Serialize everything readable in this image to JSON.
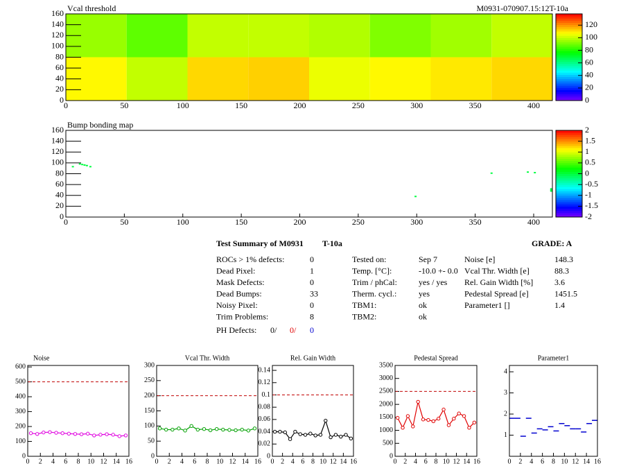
{
  "chart_data": [
    {
      "type": "heatmap",
      "title": "Vcal threshold",
      "annotation": "M0931-070907.15:12T-10a",
      "x_edges": [
        0,
        52,
        104,
        156,
        208,
        260,
        312,
        364,
        416
      ],
      "y_edges": [
        0,
        80,
        160
      ],
      "z": [
        [
          108,
          100,
          112,
          113,
          105,
          108,
          110,
          112
        ],
        [
          95,
          88,
          100,
          100,
          98,
          92,
          96,
          100
        ]
      ],
      "xlim": [
        0,
        416
      ],
      "ylim": [
        0,
        160
      ],
      "xticks": [
        0,
        50,
        100,
        150,
        200,
        250,
        300,
        350,
        400
      ],
      "yticks": [
        0,
        20,
        40,
        60,
        80,
        100,
        120,
        140,
        160
      ],
      "zlim": [
        0,
        138
      ],
      "zticks": [
        0,
        20,
        40,
        60,
        80,
        100,
        120
      ]
    },
    {
      "type": "scatter",
      "title": "Bump bonding map",
      "x": [
        6,
        12,
        14,
        16,
        18,
        21,
        299,
        364,
        395,
        401,
        415,
        415,
        415
      ],
      "y": [
        93,
        98,
        97,
        96,
        95,
        93,
        38,
        81,
        83,
        82,
        52,
        50,
        48
      ],
      "z": [
        0,
        0,
        0,
        0,
        0,
        0,
        0,
        0,
        0,
        0,
        0,
        0,
        0
      ],
      "xlim": [
        0,
        416
      ],
      "ylim": [
        0,
        160
      ],
      "xticks": [
        0,
        50,
        100,
        150,
        200,
        250,
        300,
        350,
        400
      ],
      "yticks": [
        0,
        20,
        40,
        60,
        80,
        100,
        120,
        140,
        160
      ],
      "zlim": [
        -2,
        2
      ],
      "zticks": [
        -2,
        -1.5,
        -1,
        -0.5,
        0,
        0.5,
        1,
        1.5,
        2
      ]
    },
    {
      "type": "line",
      "title": "Noise",
      "x": [
        0.5,
        1.5,
        2.5,
        3.5,
        4.5,
        5.5,
        6.5,
        7.5,
        8.5,
        9.5,
        10.5,
        11.5,
        12.5,
        13.5,
        14.5,
        15.5
      ],
      "values": [
        155,
        150,
        160,
        162,
        158,
        155,
        152,
        150,
        148,
        152,
        140,
        145,
        148,
        145,
        135,
        140
      ],
      "color": "#e000e0",
      "connect": true,
      "threshold": 500,
      "xlim": [
        0,
        16
      ],
      "ylim": [
        0,
        610
      ],
      "xticks": [
        0,
        2,
        4,
        6,
        8,
        10,
        12,
        14,
        16
      ],
      "yticks": [
        0,
        100,
        200,
        300,
        400,
        500,
        600
      ]
    },
    {
      "type": "line",
      "title": "Vcal Thr. Width",
      "x": [
        0.5,
        1.5,
        2.5,
        3.5,
        4.5,
        5.5,
        6.5,
        7.5,
        8.5,
        9.5,
        10.5,
        11.5,
        12.5,
        13.5,
        14.5,
        15.5
      ],
      "values": [
        92,
        88,
        88,
        92,
        85,
        100,
        88,
        90,
        86,
        90,
        88,
        87,
        86,
        88,
        85,
        92
      ],
      "color": "#00a000",
      "connect": true,
      "threshold": 200,
      "xlim": [
        0,
        16
      ],
      "ylim": [
        0,
        300
      ],
      "xticks": [
        0,
        2,
        4,
        6,
        8,
        10,
        12,
        14,
        16
      ],
      "yticks": [
        0,
        50,
        100,
        150,
        200,
        250,
        300
      ]
    },
    {
      "type": "line",
      "title": "Rel. Gain Width",
      "x": [
        0.5,
        1.5,
        2.5,
        3.5,
        4.5,
        5.5,
        6.5,
        7.5,
        8.5,
        9.5,
        10.5,
        11.5,
        12.5,
        13.5,
        14.5,
        15.5
      ],
      "values": [
        0.04,
        0.04,
        0.039,
        0.028,
        0.04,
        0.036,
        0.035,
        0.037,
        0.034,
        0.035,
        0.058,
        0.031,
        0.035,
        0.032,
        0.035,
        0.029
      ],
      "color": "#000000",
      "connect": true,
      "threshold": 0.1,
      "xlim": [
        0,
        16
      ],
      "ylim": [
        0,
        0.148
      ],
      "xticks": [
        0,
        2,
        4,
        6,
        8,
        10,
        12,
        14,
        16
      ],
      "yticks": [
        0,
        0.02,
        0.04,
        0.06,
        0.08,
        0.1,
        0.12,
        0.14
      ]
    },
    {
      "type": "line",
      "title": "Pedestal Spread",
      "x": [
        0.5,
        1.5,
        2.5,
        3.5,
        4.5,
        5.5,
        6.5,
        7.5,
        8.5,
        9.5,
        10.5,
        11.5,
        12.5,
        13.5,
        14.5,
        15.5
      ],
      "values": [
        1480,
        1100,
        1550,
        1150,
        2100,
        1420,
        1400,
        1350,
        1450,
        1800,
        1200,
        1450,
        1650,
        1550,
        1100,
        1300
      ],
      "color": "#e00000",
      "connect": true,
      "threshold": 2500,
      "xlim": [
        0,
        16
      ],
      "ylim": [
        0,
        3500
      ],
      "xticks": [
        0,
        2,
        4,
        6,
        8,
        10,
        12,
        14,
        16
      ],
      "yticks": [
        0,
        500,
        1000,
        1500,
        2000,
        2500,
        3000,
        3500
      ]
    },
    {
      "type": "line",
      "title": "Parameter1",
      "x": [
        0.5,
        1.5,
        2.5,
        3.5,
        4.5,
        5.5,
        6.5,
        7.5,
        8.5,
        9.5,
        10.5,
        11.5,
        12.5,
        13.5,
        14.5,
        15.5
      ],
      "values": [
        1.8,
        1.8,
        0.95,
        1.8,
        1.1,
        1.3,
        1.25,
        1.4,
        1.2,
        1.55,
        1.45,
        1.3,
        1.3,
        1.15,
        1.55,
        1.7
      ],
      "color": "#0000d0",
      "connect": false,
      "xlim": [
        0,
        16
      ],
      "ylim": [
        0,
        4.3
      ],
      "xticks": [
        0,
        2,
        4,
        6,
        8,
        10,
        12,
        14,
        16
      ],
      "yticks": [
        1,
        2,
        3,
        4
      ]
    }
  ],
  "summary": {
    "title": "Test Summary of M0931",
    "module_type": "T-10a",
    "grade": "GRADE:  A",
    "defects": [
      {
        "label": "ROCs > 1% defects:",
        "value": 0
      },
      {
        "label": "Dead Pixel:",
        "value": 1
      },
      {
        "label": "Mask Defects:",
        "value": 0
      },
      {
        "label": "Dead Bumps:",
        "value": 33
      },
      {
        "label": "Noisy Pixel:",
        "value": 0
      },
      {
        "label": "Trim Problems:",
        "value": 8
      }
    ],
    "ph_defects": {
      "label": "PH Defects:",
      "values": [
        "0/",
        "0/",
        "0"
      ]
    },
    "conditions": [
      {
        "label": "Tested on:",
        "value": "Sep 7"
      },
      {
        "label": "Temp. [°C]:",
        "value": "-10.0 +- 0.0"
      },
      {
        "label": "Trim / phCal:",
        "value": "yes / yes"
      },
      {
        "label": "Therm. cycl.:",
        "value": "yes"
      },
      {
        "label": "TBM1:",
        "value": "ok"
      },
      {
        "label": "TBM2:",
        "value": "ok"
      }
    ],
    "results": [
      {
        "label": "Noise [e]",
        "value": 148.3
      },
      {
        "label": "Vcal Thr. Width [e]",
        "value": 88.3
      },
      {
        "label": "Rel. Gain Width [%]",
        "value": 3.6
      },
      {
        "label": "Pedestal Spread [e]",
        "value": 1451.5
      },
      {
        "label": "Parameter1 []",
        "value": 1.4
      }
    ]
  }
}
